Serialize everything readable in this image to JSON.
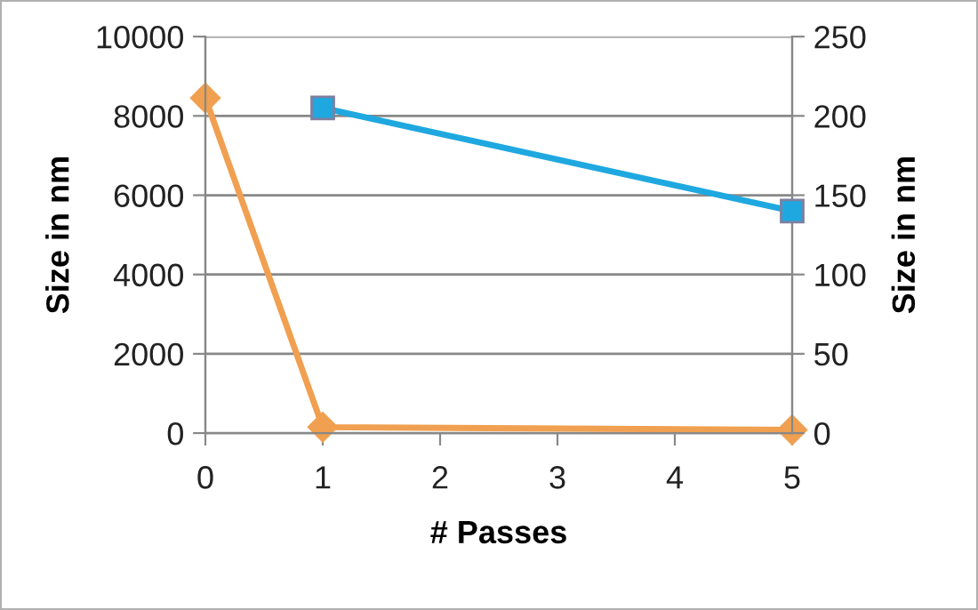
{
  "chart_data": {
    "type": "line",
    "xlabel": "# Passes",
    "ylabel": "Size in nm",
    "y2label": "Size in nm",
    "xlim": [
      0,
      5
    ],
    "xticks": [
      0,
      1,
      2,
      3,
      4,
      5
    ],
    "ylim": [
      0,
      10000
    ],
    "yticks": [
      0,
      2000,
      4000,
      6000,
      8000,
      10000
    ],
    "y2lim": [
      0,
      250
    ],
    "y2ticks": [
      0,
      50,
      100,
      150,
      200,
      250
    ],
    "grid": "y",
    "series": [
      {
        "x": [
          0,
          1,
          5
        ],
        "values": [
          8450,
          150,
          80
        ],
        "color": "#f0a050",
        "marker": "diamond"
      },
      {
        "x": [
          1,
          5
        ],
        "values": [
          205,
          140
        ],
        "color": "#1fa8e0",
        "marker": "square",
        "axis": "y2"
      }
    ]
  }
}
